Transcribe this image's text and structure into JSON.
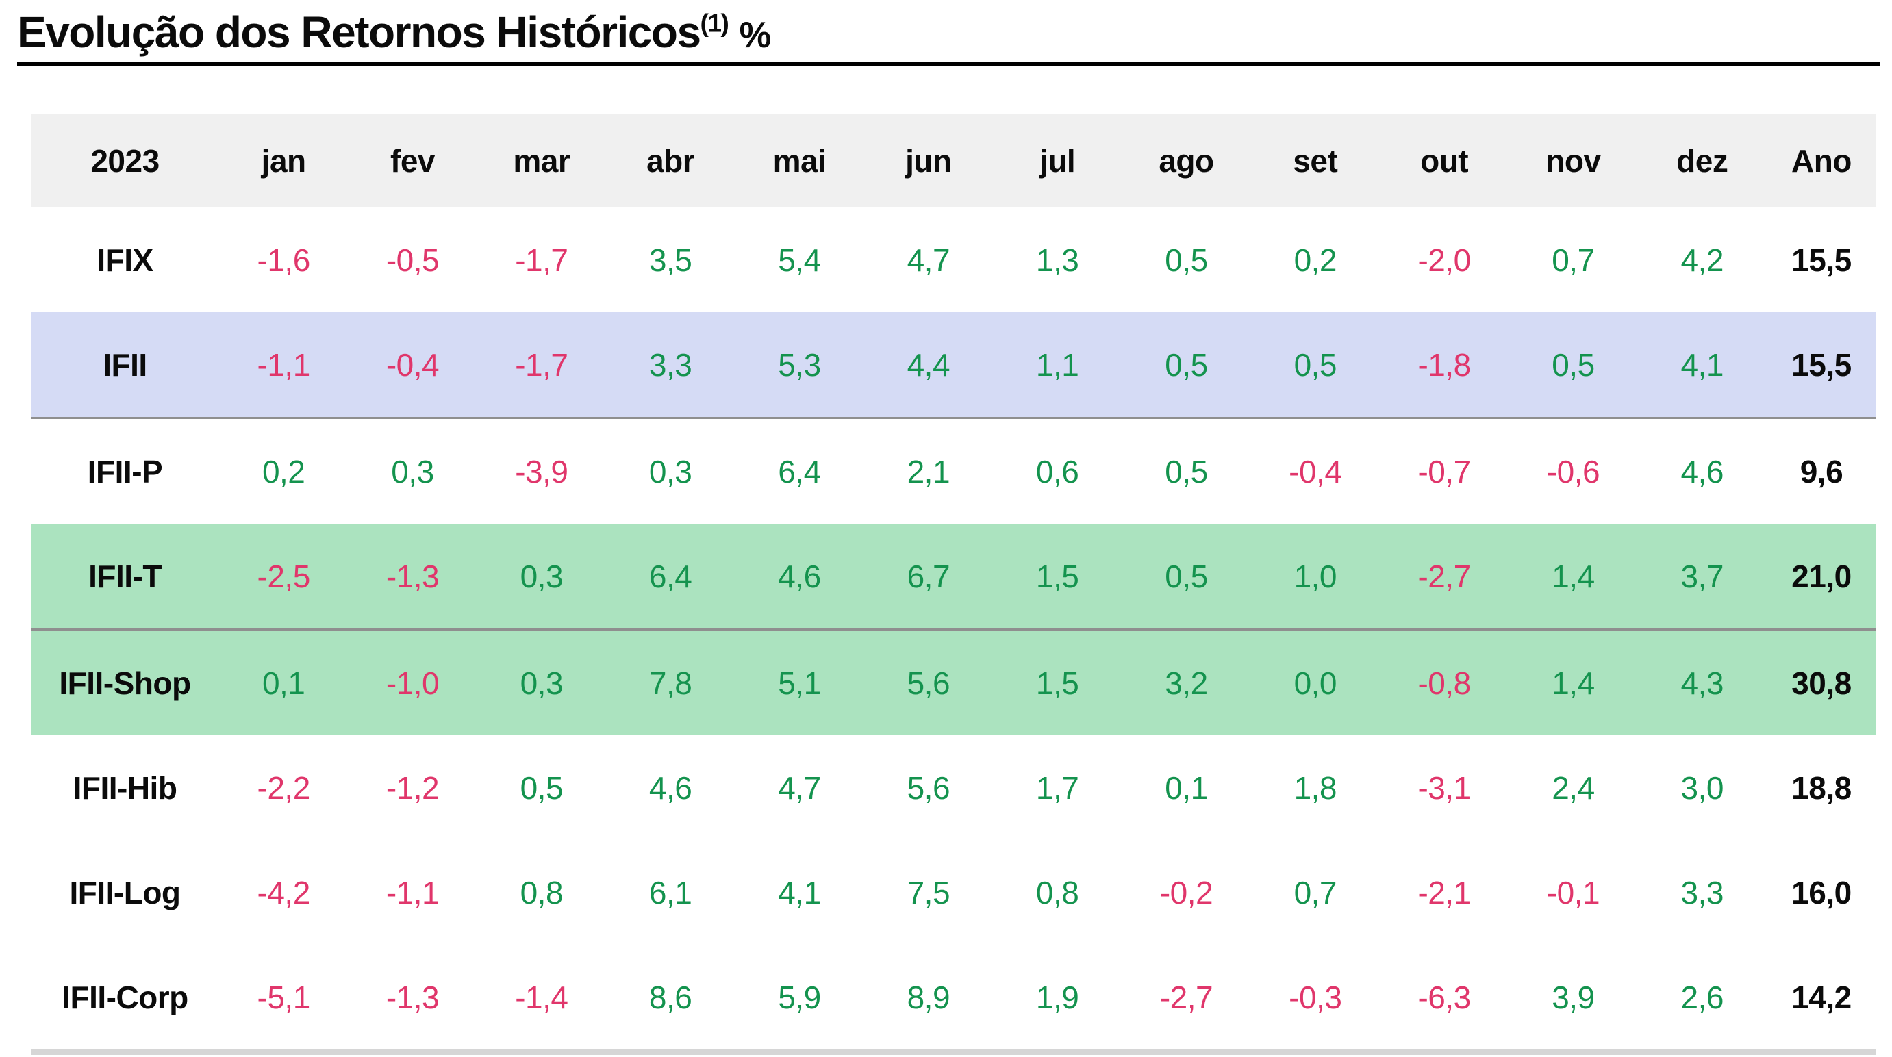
{
  "title": {
    "text": "Evolução dos Retornos Históricos",
    "superscript": "(1)",
    "suffix": "%"
  },
  "table": {
    "year_header": "2023",
    "months": [
      "jan",
      "fev",
      "mar",
      "abr",
      "mai",
      "jun",
      "jul",
      "ago",
      "set",
      "out",
      "nov",
      "dez"
    ],
    "ano_label": "Ano",
    "rows": [
      {
        "label": "IFIX",
        "values": [
          "-1,6",
          "-0,5",
          "-1,7",
          "3,5",
          "5,4",
          "4,7",
          "1,3",
          "0,5",
          "0,2",
          "-2,0",
          "0,7",
          "4,2"
        ],
        "total": "15,5",
        "highlight": "none",
        "divider_after": false
      },
      {
        "label": "IFII",
        "values": [
          "-1,1",
          "-0,4",
          "-1,7",
          "3,3",
          "5,3",
          "4,4",
          "1,1",
          "0,5",
          "0,5",
          "-1,8",
          "0,5",
          "4,1"
        ],
        "total": "15,5",
        "highlight": "blue",
        "divider_after": true
      },
      {
        "label": "IFII-P",
        "values": [
          "0,2",
          "0,3",
          "-3,9",
          "0,3",
          "6,4",
          "2,1",
          "0,6",
          "0,5",
          "-0,4",
          "-0,7",
          "-0,6",
          "4,6"
        ],
        "total": "9,6",
        "highlight": "none",
        "divider_after": false
      },
      {
        "label": "IFII-T",
        "values": [
          "-2,5",
          "-1,3",
          "0,3",
          "6,4",
          "4,6",
          "6,7",
          "1,5",
          "0,5",
          "1,0",
          "-2,7",
          "1,4",
          "3,7"
        ],
        "total": "21,0",
        "highlight": "green",
        "divider_after": true
      },
      {
        "label": "IFII-Shop",
        "values": [
          "0,1",
          "-1,0",
          "0,3",
          "7,8",
          "5,1",
          "5,6",
          "1,5",
          "3,2",
          "0,0",
          "-0,8",
          "1,4",
          "4,3"
        ],
        "total": "30,8",
        "highlight": "green",
        "divider_after": false
      },
      {
        "label": "IFII-Hib",
        "values": [
          "-2,2",
          "-1,2",
          "0,5",
          "4,6",
          "4,7",
          "5,6",
          "1,7",
          "0,1",
          "1,8",
          "-3,1",
          "2,4",
          "3,0"
        ],
        "total": "18,8",
        "highlight": "none",
        "divider_after": false
      },
      {
        "label": "IFII-Log",
        "values": [
          "-4,2",
          "-1,1",
          "0,8",
          "6,1",
          "4,1",
          "7,5",
          "0,8",
          "-0,2",
          "0,7",
          "-2,1",
          "-0,1",
          "3,3"
        ],
        "total": "16,0",
        "highlight": "none",
        "divider_after": false
      },
      {
        "label": "IFII-Corp",
        "values": [
          "-5,1",
          "-1,3",
          "-1,4",
          "8,6",
          "5,9",
          "8,9",
          "1,9",
          "-2,7",
          "-0,3",
          "-6,3",
          "3,9",
          "2,6"
        ],
        "total": "14,2",
        "highlight": "none",
        "divider_after": false
      }
    ]
  },
  "colors": {
    "positive_text": "#14934e",
    "negative_text": "#e0366b",
    "header_bg": "#f0f0f0",
    "highlight_blue_bg": "#d5dbf5",
    "highlight_green_bg": "#abe3bf",
    "divider_gray": "#8f8f8f",
    "bottom_rule_gray": "#d6d6d6",
    "title_rule": "#000000"
  },
  "chart_data": {
    "type": "table",
    "title": "Evolução dos Retornos Históricos (1) %",
    "unit": "%",
    "year": 2023,
    "columns": [
      "jan",
      "fev",
      "mar",
      "abr",
      "mai",
      "jun",
      "jul",
      "ago",
      "set",
      "out",
      "nov",
      "dez",
      "Ano"
    ],
    "series": [
      {
        "name": "IFIX",
        "values": [
          -1.6,
          -0.5,
          -1.7,
          3.5,
          5.4,
          4.7,
          1.3,
          0.5,
          0.2,
          -2.0,
          0.7,
          4.2
        ],
        "year_total": 15.5
      },
      {
        "name": "IFII",
        "values": [
          -1.1,
          -0.4,
          -1.7,
          3.3,
          5.3,
          4.4,
          1.1,
          0.5,
          0.5,
          -1.8,
          0.5,
          4.1
        ],
        "year_total": 15.5
      },
      {
        "name": "IFII-P",
        "values": [
          0.2,
          0.3,
          -3.9,
          0.3,
          6.4,
          2.1,
          0.6,
          0.5,
          -0.4,
          -0.7,
          -0.6,
          4.6
        ],
        "year_total": 9.6
      },
      {
        "name": "IFII-T",
        "values": [
          -2.5,
          -1.3,
          0.3,
          6.4,
          4.6,
          6.7,
          1.5,
          0.5,
          1.0,
          -2.7,
          1.4,
          3.7
        ],
        "year_total": 21.0
      },
      {
        "name": "IFII-Shop",
        "values": [
          0.1,
          -1.0,
          0.3,
          7.8,
          5.1,
          5.6,
          1.5,
          3.2,
          0.0,
          -0.8,
          1.4,
          4.3
        ],
        "year_total": 30.8
      },
      {
        "name": "IFII-Hib",
        "values": [
          -2.2,
          -1.2,
          0.5,
          4.6,
          4.7,
          5.6,
          1.7,
          0.1,
          1.8,
          -3.1,
          2.4,
          3.0
        ],
        "year_total": 18.8
      },
      {
        "name": "IFII-Log",
        "values": [
          -4.2,
          -1.1,
          0.8,
          6.1,
          4.1,
          7.5,
          0.8,
          -0.2,
          0.7,
          -2.1,
          -0.1,
          3.3
        ],
        "year_total": 16.0
      },
      {
        "name": "IFII-Corp",
        "values": [
          -5.1,
          -1.3,
          -1.4,
          8.6,
          5.9,
          8.9,
          1.9,
          -2.7,
          -0.3,
          -6.3,
          3.9,
          2.6
        ],
        "year_total": 14.2
      }
    ]
  }
}
